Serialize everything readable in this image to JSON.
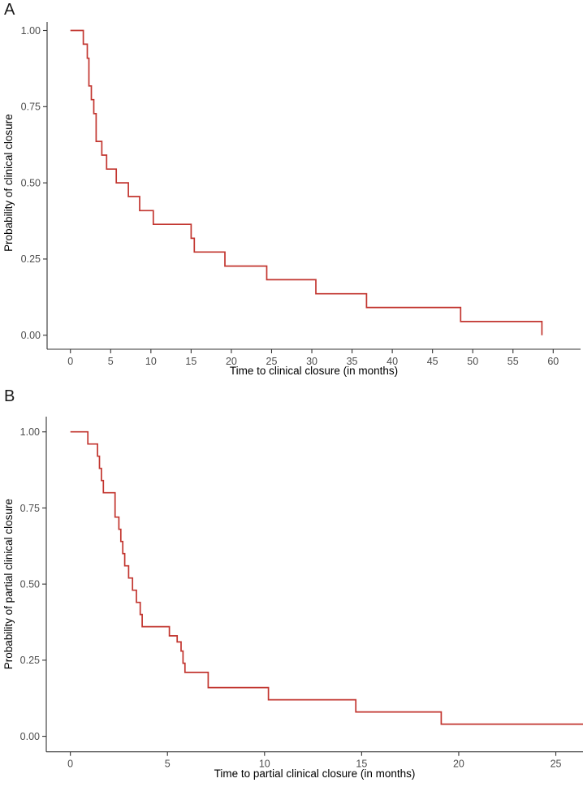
{
  "theme": {
    "background": "#ffffff",
    "axis_color": "#333333",
    "tick_label_color": "#4d4d4d",
    "axis_title_color": "#000000",
    "panel_label_color": "#1a1a1a",
    "curve_color": "#C2352F"
  },
  "chart_data": [
    {
      "type": "line",
      "step": true,
      "panel_label": "A",
      "title": "",
      "xlabel": "Time to clinical closure (in months)",
      "ylabel": "Probability of clinical closure",
      "x_ticks": [
        0,
        5,
        10,
        15,
        20,
        25,
        30,
        35,
        40,
        45,
        50,
        55,
        60
      ],
      "y_ticks": [
        0,
        0.25,
        0.5,
        0.75,
        1
      ],
      "y_tick_labels": [
        "0.00",
        "0.25",
        "0.50",
        "0.75",
        "1.00"
      ],
      "xlim": [
        -2.9,
        63.4
      ],
      "ylim": [
        -0.046,
        1.028
      ],
      "grid": false,
      "legend": false,
      "line_color": "#C2352F",
      "points": [
        [
          0,
          1.0
        ],
        [
          1.6,
          0.955
        ],
        [
          2.1,
          0.909
        ],
        [
          2.3,
          0.818
        ],
        [
          2.6,
          0.773
        ],
        [
          2.9,
          0.727
        ],
        [
          3.2,
          0.636
        ],
        [
          3.9,
          0.591
        ],
        [
          4.5,
          0.545
        ],
        [
          5.7,
          0.5
        ],
        [
          7.2,
          0.455
        ],
        [
          8.6,
          0.409
        ],
        [
          10.3,
          0.364
        ],
        [
          15.0,
          0.318
        ],
        [
          15.4,
          0.273
        ],
        [
          19.2,
          0.227
        ],
        [
          24.4,
          0.182
        ],
        [
          30.5,
          0.136
        ],
        [
          36.8,
          0.091
        ],
        [
          48.5,
          0.045
        ],
        [
          58.6,
          0.0
        ]
      ],
      "end_time": 58.6
    },
    {
      "type": "line",
      "step": true,
      "panel_label": "B",
      "title": "",
      "xlabel": "Time to partial clinical closure (in months)",
      "ylabel": "Probability of partial clinical closure",
      "x_ticks": [
        0,
        5,
        10,
        15,
        20,
        25
      ],
      "y_ticks": [
        0,
        0.25,
        0.5,
        0.75,
        1
      ],
      "y_tick_labels": [
        "0.00",
        "0.25",
        "0.50",
        "0.75",
        "1.00"
      ],
      "xlim": [
        -1.24,
        26.4
      ],
      "ylim": [
        -0.051,
        1.05
      ],
      "grid": false,
      "legend": false,
      "line_color": "#C2352F",
      "points": [
        [
          0,
          1.0
        ],
        [
          0.9,
          0.96
        ],
        [
          1.4,
          0.92
        ],
        [
          1.5,
          0.88
        ],
        [
          1.6,
          0.84
        ],
        [
          1.7,
          0.8
        ],
        [
          2.3,
          0.72
        ],
        [
          2.5,
          0.68
        ],
        [
          2.6,
          0.64
        ],
        [
          2.7,
          0.6
        ],
        [
          2.8,
          0.56
        ],
        [
          3.0,
          0.52
        ],
        [
          3.2,
          0.48
        ],
        [
          3.4,
          0.44
        ],
        [
          3.6,
          0.4
        ],
        [
          3.7,
          0.36
        ],
        [
          5.1,
          0.33
        ],
        [
          5.5,
          0.31
        ],
        [
          5.7,
          0.28
        ],
        [
          5.8,
          0.24
        ],
        [
          5.9,
          0.21
        ],
        [
          7.1,
          0.16
        ],
        [
          10.2,
          0.12
        ],
        [
          14.7,
          0.08
        ],
        [
          19.1,
          0.04
        ]
      ],
      "end_time": 26.4
    }
  ]
}
